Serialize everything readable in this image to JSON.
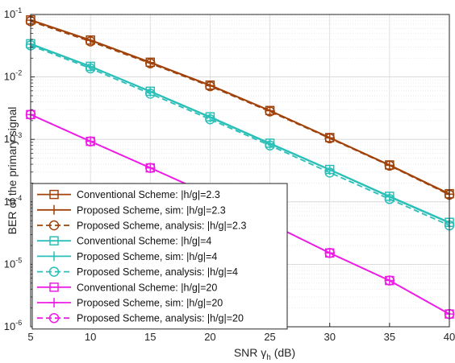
{
  "chart_data": {
    "type": "line",
    "xlabel": "SNR γ",
    "xlabel_subscript": "h",
    "xlabel_unit": " (dB)",
    "ylabel": "BER of the primary signal",
    "xlim": [
      5,
      40
    ],
    "ylim": [
      1e-06,
      0.1
    ],
    "yscale": "log",
    "grid": true,
    "legend_position": "bottom-left",
    "x_ticks": [
      "5",
      "10",
      "15",
      "20",
      "25",
      "30",
      "35",
      "40"
    ],
    "y_ticks": [
      {
        "base": "10",
        "exp": "-6"
      },
      {
        "base": "10",
        "exp": "-5"
      },
      {
        "base": "10",
        "exp": "-4"
      },
      {
        "base": "10",
        "exp": "-3"
      },
      {
        "base": "10",
        "exp": "-2"
      },
      {
        "base": "10",
        "exp": "-1"
      }
    ],
    "x": [
      5,
      10,
      15,
      20,
      25,
      30,
      35,
      40
    ],
    "series": [
      {
        "name": "Conventional Scheme: |h/g|=2.3",
        "color": "#a0420a",
        "marker": "square",
        "dash": "solid",
        "values": [
          0.082,
          0.039,
          0.0172,
          0.0074,
          0.0029,
          0.00107,
          0.00039,
          0.000135
        ]
      },
      {
        "name": "Proposed Scheme, sim: |h/g|=2.3",
        "color": "#a0420a",
        "marker": "plus",
        "dash": "solid",
        "values": [
          0.081,
          0.0385,
          0.017,
          0.0073,
          0.00288,
          0.00106,
          0.000385,
          0.000133
        ]
      },
      {
        "name": "Proposed Scheme, analysis: |h/g|=2.3",
        "color": "#a0420a",
        "marker": "circle",
        "dash": "dashed",
        "values": [
          0.078,
          0.037,
          0.0165,
          0.0071,
          0.0028,
          0.00104,
          0.00038,
          0.00013
        ]
      },
      {
        "name": "Conventional Scheme: |h/g|=4",
        "color": "#2bbfb8",
        "marker": "square",
        "dash": "solid",
        "values": [
          0.034,
          0.0148,
          0.0059,
          0.0023,
          0.00087,
          0.00033,
          0.000123,
          4.7e-05
        ]
      },
      {
        "name": "Proposed Scheme, sim: |h/g|=4",
        "color": "#2bbfb8",
        "marker": "plus",
        "dash": "solid",
        "values": [
          0.0335,
          0.0146,
          0.0058,
          0.00225,
          0.00085,
          0.000325,
          0.00012,
          4.6e-05
        ]
      },
      {
        "name": "Proposed Scheme, analysis: |h/g|=4",
        "color": "#2bbfb8",
        "marker": "circle",
        "dash": "dashed",
        "values": [
          0.032,
          0.0137,
          0.0054,
          0.0021,
          0.0008,
          0.000295,
          0.000111,
          4.2e-05
        ]
      },
      {
        "name": "Conventional Scheme: |h/g|=20",
        "color": "#ee1ee6",
        "marker": "square",
        "dash": "solid",
        "values": [
          0.0025,
          0.00093,
          0.00035,
          0.00013,
          4.5e-05,
          1.52e-05,
          5.5e-06,
          1.6e-06
        ]
      },
      {
        "name": "Proposed Scheme, sim: |h/g|=20",
        "color": "#ee1ee6",
        "marker": "plus",
        "dash": "solid",
        "values": [
          0.0025,
          0.00093,
          0.00035,
          0.00013,
          4.5e-05,
          1.52e-05,
          5.5e-06,
          1.6e-06
        ]
      },
      {
        "name": "Proposed Scheme, analysis: |h/g|=20",
        "color": "#ee1ee6",
        "marker": "circle",
        "dash": "dashed",
        "values": [
          0.0025,
          0.00093,
          0.00035,
          0.00013,
          4.5e-05,
          1.52e-05,
          5.5e-06,
          1.6e-06
        ]
      }
    ]
  }
}
